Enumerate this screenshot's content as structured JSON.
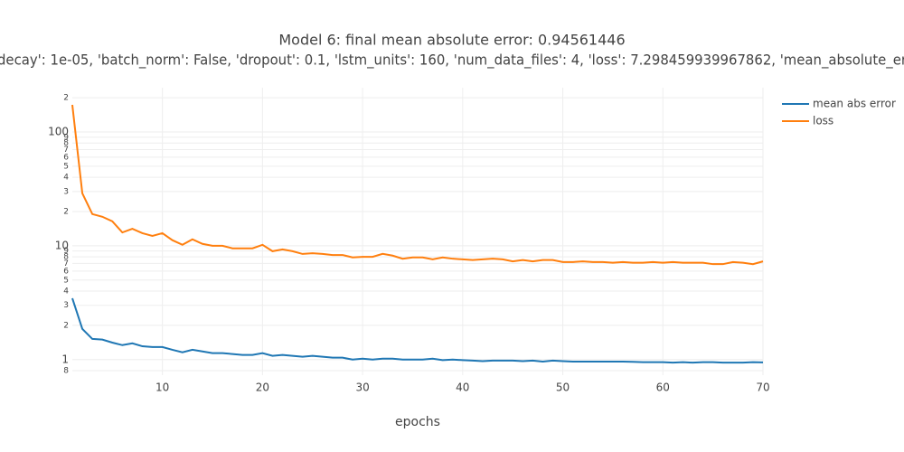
{
  "chart_data": {
    "type": "line",
    "title": "Model 6: final mean absolute error: 0.94561446",
    "subtitle": "decay': 1e-05, 'batch_norm': False, 'dropout': 0.1, 'lstm_units': 160, 'num_data_files': 4, 'loss': 7.298459939967862, 'mean_absolute_er",
    "x_label": "epochs",
    "x": [
      1,
      2,
      3,
      4,
      5,
      6,
      7,
      8,
      9,
      10,
      11,
      12,
      13,
      14,
      15,
      16,
      17,
      18,
      19,
      20,
      21,
      22,
      23,
      24,
      25,
      26,
      27,
      28,
      29,
      30,
      31,
      32,
      33,
      34,
      35,
      36,
      37,
      38,
      39,
      40,
      41,
      42,
      43,
      44,
      45,
      46,
      47,
      48,
      49,
      50,
      51,
      52,
      53,
      54,
      55,
      56,
      57,
      58,
      59,
      60,
      61,
      62,
      63,
      64,
      65,
      66,
      67,
      68,
      69,
      70
    ],
    "series": [
      {
        "name": "mean abs error",
        "color": "#1f77b4",
        "values": [
          3.46,
          1.86,
          1.52,
          1.5,
          1.41,
          1.34,
          1.39,
          1.31,
          1.29,
          1.29,
          1.22,
          1.16,
          1.22,
          1.18,
          1.14,
          1.14,
          1.12,
          1.1,
          1.1,
          1.14,
          1.08,
          1.1,
          1.08,
          1.06,
          1.08,
          1.06,
          1.04,
          1.04,
          1.0,
          1.02,
          1.0,
          1.02,
          1.02,
          1.0,
          1.0,
          1.0,
          1.02,
          0.99,
          1.0,
          0.99,
          0.98,
          0.97,
          0.98,
          0.98,
          0.98,
          0.97,
          0.98,
          0.96,
          0.98,
          0.97,
          0.96,
          0.96,
          0.96,
          0.96,
          0.96,
          0.96,
          0.955,
          0.95,
          0.95,
          0.95,
          0.94,
          0.95,
          0.94,
          0.95,
          0.95,
          0.94,
          0.94,
          0.94,
          0.95,
          0.946
        ]
      },
      {
        "name": "loss",
        "color": "#ff7f0e",
        "values": [
          173,
          28.9,
          19,
          18,
          16.4,
          13.1,
          14.1,
          12.9,
          12.2,
          12.9,
          11.2,
          10.2,
          11.4,
          10.4,
          10,
          10,
          9.5,
          9.5,
          9.5,
          10.2,
          8.96,
          9.3,
          8.96,
          8.48,
          8.6,
          8.48,
          8.3,
          8.3,
          7.9,
          8,
          8,
          8.5,
          8.2,
          7.7,
          7.9,
          7.9,
          7.6,
          7.9,
          7.7,
          7.6,
          7.5,
          7.6,
          7.7,
          7.6,
          7.3,
          7.5,
          7.3,
          7.5,
          7.5,
          7.2,
          7.2,
          7.3,
          7.2,
          7.2,
          7.1,
          7.2,
          7.1,
          7.1,
          7.2,
          7.1,
          7.2,
          7.1,
          7.1,
          7.1,
          6.9,
          6.9,
          7.2,
          7.1,
          6.9,
          7.3
        ]
      }
    ],
    "xlim": [
      1,
      70
    ],
    "xticks": [
      10,
      20,
      30,
      40,
      50,
      60,
      70
    ],
    "ylim": [
      0.73,
      245
    ],
    "log_y": true,
    "grid": true,
    "legend": "top-right",
    "yticks": [
      {
        "value": 200,
        "label": "2"
      },
      100,
      {
        "value": 90,
        "label": "9"
      },
      {
        "value": 80,
        "label": "8"
      },
      {
        "value": 70,
        "label": "7"
      },
      {
        "value": 60,
        "label": "6"
      },
      {
        "value": 50,
        "label": "5"
      },
      {
        "value": 40,
        "label": "4"
      },
      {
        "value": 30,
        "label": "3"
      },
      {
        "value": 20,
        "label": "2"
      },
      10,
      {
        "value": 9,
        "label": "9"
      },
      {
        "value": 8,
        "label": "8"
      },
      {
        "value": 7,
        "label": "7"
      },
      {
        "value": 6,
        "label": "6"
      },
      {
        "value": 5,
        "label": "5"
      },
      {
        "value": 4,
        "label": "4"
      },
      {
        "value": 3,
        "label": "3"
      },
      {
        "value": 2,
        "label": "2"
      },
      1,
      {
        "value": 0.8,
        "label": "8"
      }
    ]
  }
}
